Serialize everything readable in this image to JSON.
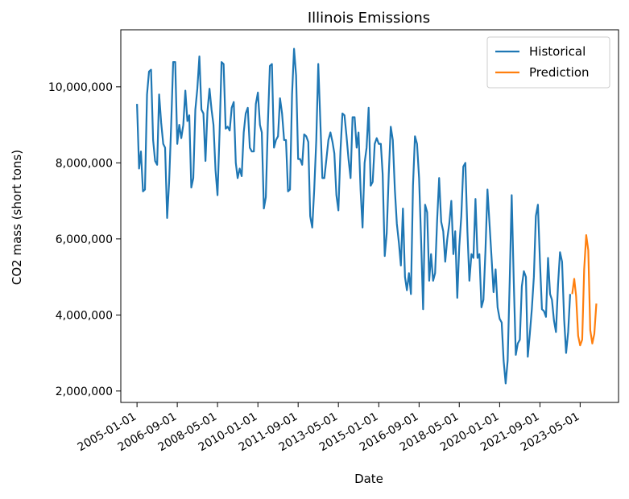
{
  "chart_data": {
    "type": "line",
    "title": "Illinois Emissions",
    "xlabel": "Date",
    "ylabel": "CO2 mass (short tons)",
    "x_axis_type": "date",
    "xlim": [
      "2004-05-01",
      "2024-12-01"
    ],
    "ylim": [
      1700000,
      11500000
    ],
    "x_ticks": [
      "2005-01-01",
      "2006-09-01",
      "2008-05-01",
      "2010-01-01",
      "2011-09-01",
      "2013-05-01",
      "2015-01-01",
      "2016-09-01",
      "2018-05-01",
      "2020-01-01",
      "2021-09-01",
      "2023-05-01"
    ],
    "y_ticks": [
      2000000,
      4000000,
      6000000,
      8000000,
      10000000
    ],
    "y_tick_labels": [
      "2,000,000",
      "4,000,000",
      "6,000,000",
      "8,000,000",
      "10,000,000"
    ],
    "grid": false,
    "legend_position": "top-right",
    "series": [
      {
        "name": "Historical",
        "color": "#1f77b4",
        "points": [
          [
            "2005-01-01",
            9550000
          ],
          [
            "2005-02-01",
            7850000
          ],
          [
            "2005-03-01",
            8300000
          ],
          [
            "2005-04-01",
            7250000
          ],
          [
            "2005-05-01",
            7300000
          ],
          [
            "2005-06-01",
            9800000
          ],
          [
            "2005-07-01",
            10400000
          ],
          [
            "2005-08-01",
            10450000
          ],
          [
            "2005-09-01",
            8600000
          ],
          [
            "2005-10-01",
            8050000
          ],
          [
            "2005-11-01",
            7950000
          ],
          [
            "2005-12-01",
            9800000
          ],
          [
            "2006-01-01",
            9050000
          ],
          [
            "2006-02-01",
            8500000
          ],
          [
            "2006-03-01",
            8400000
          ],
          [
            "2006-04-01",
            6550000
          ],
          [
            "2006-05-01",
            7500000
          ],
          [
            "2006-06-01",
            9000000
          ],
          [
            "2006-07-01",
            10650000
          ],
          [
            "2006-08-01",
            10650000
          ],
          [
            "2006-09-01",
            8500000
          ],
          [
            "2006-10-01",
            9000000
          ],
          [
            "2006-11-01",
            8650000
          ],
          [
            "2006-12-01",
            9000000
          ],
          [
            "2007-01-01",
            9900000
          ],
          [
            "2007-02-01",
            9100000
          ],
          [
            "2007-03-01",
            9250000
          ],
          [
            "2007-04-01",
            7350000
          ],
          [
            "2007-05-01",
            7600000
          ],
          [
            "2007-06-01",
            9400000
          ],
          [
            "2007-07-01",
            9950000
          ],
          [
            "2007-08-01",
            10800000
          ],
          [
            "2007-09-01",
            9400000
          ],
          [
            "2007-10-01",
            9300000
          ],
          [
            "2007-11-01",
            8050000
          ],
          [
            "2007-12-01",
            9350000
          ],
          [
            "2008-01-01",
            9950000
          ],
          [
            "2008-02-01",
            9400000
          ],
          [
            "2008-03-01",
            9000000
          ],
          [
            "2008-04-01",
            7800000
          ],
          [
            "2008-05-01",
            7150000
          ],
          [
            "2008-06-01",
            8800000
          ],
          [
            "2008-07-01",
            10650000
          ],
          [
            "2008-08-01",
            10600000
          ],
          [
            "2008-09-01",
            8900000
          ],
          [
            "2008-10-01",
            8950000
          ],
          [
            "2008-11-01",
            8850000
          ],
          [
            "2008-12-01",
            9450000
          ],
          [
            "2009-01-01",
            9600000
          ],
          [
            "2009-02-01",
            8000000
          ],
          [
            "2009-03-01",
            7600000
          ],
          [
            "2009-04-01",
            7850000
          ],
          [
            "2009-05-01",
            7650000
          ],
          [
            "2009-06-01",
            8800000
          ],
          [
            "2009-07-01",
            9300000
          ],
          [
            "2009-08-01",
            9450000
          ],
          [
            "2009-09-01",
            8400000
          ],
          [
            "2009-10-01",
            8300000
          ],
          [
            "2009-11-01",
            8300000
          ],
          [
            "2009-12-01",
            9550000
          ],
          [
            "2010-01-01",
            9850000
          ],
          [
            "2010-02-01",
            9000000
          ],
          [
            "2010-03-01",
            8800000
          ],
          [
            "2010-04-01",
            6800000
          ],
          [
            "2010-05-01",
            7100000
          ],
          [
            "2010-06-01",
            9050000
          ],
          [
            "2010-07-01",
            10550000
          ],
          [
            "2010-08-01",
            10600000
          ],
          [
            "2010-09-01",
            8400000
          ],
          [
            "2010-10-01",
            8600000
          ],
          [
            "2010-11-01",
            8700000
          ],
          [
            "2010-12-01",
            9700000
          ],
          [
            "2011-01-01",
            9300000
          ],
          [
            "2011-02-01",
            8600000
          ],
          [
            "2011-03-01",
            8600000
          ],
          [
            "2011-04-01",
            7250000
          ],
          [
            "2011-05-01",
            7300000
          ],
          [
            "2011-06-01",
            9800000
          ],
          [
            "2011-07-01",
            11000000
          ],
          [
            "2011-08-01",
            10300000
          ],
          [
            "2011-09-01",
            8100000
          ],
          [
            "2011-10-01",
            8100000
          ],
          [
            "2011-11-01",
            7950000
          ],
          [
            "2011-12-01",
            8750000
          ],
          [
            "2012-01-01",
            8700000
          ],
          [
            "2012-02-01",
            8550000
          ],
          [
            "2012-03-01",
            6600000
          ],
          [
            "2012-04-01",
            6300000
          ],
          [
            "2012-05-01",
            7300000
          ],
          [
            "2012-06-01",
            8600000
          ],
          [
            "2012-07-01",
            10600000
          ],
          [
            "2012-08-01",
            9100000
          ],
          [
            "2012-09-01",
            7600000
          ],
          [
            "2012-10-01",
            7600000
          ],
          [
            "2012-11-01",
            8100000
          ],
          [
            "2012-12-01",
            8600000
          ],
          [
            "2013-01-01",
            8800000
          ],
          [
            "2013-02-01",
            8550000
          ],
          [
            "2013-03-01",
            8250000
          ],
          [
            "2013-04-01",
            7150000
          ],
          [
            "2013-05-01",
            6750000
          ],
          [
            "2013-06-01",
            8300000
          ],
          [
            "2013-07-01",
            9300000
          ],
          [
            "2013-08-01",
            9250000
          ],
          [
            "2013-09-01",
            8700000
          ],
          [
            "2013-10-01",
            8100000
          ],
          [
            "2013-11-01",
            7600000
          ],
          [
            "2013-12-01",
            9200000
          ],
          [
            "2014-01-01",
            9200000
          ],
          [
            "2014-02-01",
            8400000
          ],
          [
            "2014-03-01",
            8800000
          ],
          [
            "2014-04-01",
            7300000
          ],
          [
            "2014-05-01",
            6300000
          ],
          [
            "2014-06-01",
            8000000
          ],
          [
            "2014-07-01",
            8400000
          ],
          [
            "2014-08-01",
            9450000
          ],
          [
            "2014-09-01",
            7400000
          ],
          [
            "2014-10-01",
            7500000
          ],
          [
            "2014-11-01",
            8500000
          ],
          [
            "2014-12-01",
            8650000
          ],
          [
            "2015-01-01",
            8500000
          ],
          [
            "2015-02-01",
            8500000
          ],
          [
            "2015-03-01",
            7700000
          ],
          [
            "2015-04-01",
            5550000
          ],
          [
            "2015-05-01",
            6150000
          ],
          [
            "2015-06-01",
            7700000
          ],
          [
            "2015-07-01",
            8950000
          ],
          [
            "2015-08-01",
            8600000
          ],
          [
            "2015-09-01",
            7300000
          ],
          [
            "2015-10-01",
            6400000
          ],
          [
            "2015-11-01",
            5900000
          ],
          [
            "2015-12-01",
            5300000
          ],
          [
            "2016-01-01",
            6800000
          ],
          [
            "2016-02-01",
            5000000
          ],
          [
            "2016-03-01",
            4650000
          ],
          [
            "2016-04-01",
            5100000
          ],
          [
            "2016-05-01",
            4550000
          ],
          [
            "2016-06-01",
            7400000
          ],
          [
            "2016-07-01",
            8700000
          ],
          [
            "2016-08-01",
            8500000
          ],
          [
            "2016-09-01",
            7600000
          ],
          [
            "2016-10-01",
            6000000
          ],
          [
            "2016-11-01",
            4150000
          ],
          [
            "2016-12-01",
            6900000
          ],
          [
            "2017-01-01",
            6700000
          ],
          [
            "2017-02-01",
            4900000
          ],
          [
            "2017-03-01",
            5600000
          ],
          [
            "2017-04-01",
            4900000
          ],
          [
            "2017-05-01",
            5100000
          ],
          [
            "2017-06-01",
            6500000
          ],
          [
            "2017-07-01",
            7600000
          ],
          [
            "2017-08-01",
            6450000
          ],
          [
            "2017-09-01",
            6200000
          ],
          [
            "2017-10-01",
            5400000
          ],
          [
            "2017-11-01",
            6000000
          ],
          [
            "2017-12-01",
            6400000
          ],
          [
            "2018-01-01",
            7000000
          ],
          [
            "2018-02-01",
            5600000
          ],
          [
            "2018-03-01",
            6200000
          ],
          [
            "2018-04-01",
            4450000
          ],
          [
            "2018-05-01",
            5800000
          ],
          [
            "2018-06-01",
            6600000
          ],
          [
            "2018-07-01",
            7900000
          ],
          [
            "2018-08-01",
            8000000
          ],
          [
            "2018-09-01",
            6200000
          ],
          [
            "2018-10-01",
            4900000
          ],
          [
            "2018-11-01",
            5600000
          ],
          [
            "2018-12-01",
            5500000
          ],
          [
            "2019-01-01",
            7050000
          ],
          [
            "2019-02-01",
            5500000
          ],
          [
            "2019-03-01",
            5600000
          ],
          [
            "2019-04-01",
            4200000
          ],
          [
            "2019-05-01",
            4400000
          ],
          [
            "2019-06-01",
            5700000
          ],
          [
            "2019-07-01",
            7300000
          ],
          [
            "2019-08-01",
            6400000
          ],
          [
            "2019-09-01",
            5500000
          ],
          [
            "2019-10-01",
            4600000
          ],
          [
            "2019-11-01",
            5200000
          ],
          [
            "2019-12-01",
            4200000
          ],
          [
            "2020-01-01",
            3900000
          ],
          [
            "2020-02-01",
            3800000
          ],
          [
            "2020-03-01",
            2800000
          ],
          [
            "2020-04-01",
            2200000
          ],
          [
            "2020-05-01",
            2800000
          ],
          [
            "2020-06-01",
            4900000
          ],
          [
            "2020-07-01",
            7150000
          ],
          [
            "2020-08-01",
            4900000
          ],
          [
            "2020-09-01",
            2950000
          ],
          [
            "2020-10-01",
            3250000
          ],
          [
            "2020-11-01",
            3350000
          ],
          [
            "2020-12-01",
            4750000
          ],
          [
            "2021-01-01",
            5150000
          ],
          [
            "2021-02-01",
            5000000
          ],
          [
            "2021-03-01",
            2900000
          ],
          [
            "2021-04-01",
            3500000
          ],
          [
            "2021-05-01",
            4150000
          ],
          [
            "2021-06-01",
            5000000
          ],
          [
            "2021-07-01",
            6600000
          ],
          [
            "2021-08-01",
            6900000
          ],
          [
            "2021-09-01",
            5400000
          ],
          [
            "2021-10-01",
            4150000
          ],
          [
            "2021-11-01",
            4100000
          ],
          [
            "2021-12-01",
            3950000
          ],
          [
            "2022-01-01",
            5500000
          ],
          [
            "2022-02-01",
            4550000
          ],
          [
            "2022-03-01",
            4400000
          ],
          [
            "2022-04-01",
            3850000
          ],
          [
            "2022-05-01",
            3550000
          ],
          [
            "2022-06-01",
            4800000
          ],
          [
            "2022-07-01",
            5650000
          ],
          [
            "2022-08-01",
            5400000
          ],
          [
            "2022-09-01",
            3900000
          ],
          [
            "2022-10-01",
            3000000
          ],
          [
            "2022-11-01",
            3550000
          ],
          [
            "2022-12-01",
            4550000
          ]
        ]
      },
      {
        "name": "Prediction",
        "color": "#ff7f0e",
        "points": [
          [
            "2023-01-01",
            4550000
          ],
          [
            "2023-02-01",
            4950000
          ],
          [
            "2023-03-01",
            4500000
          ],
          [
            "2023-04-01",
            3450000
          ],
          [
            "2023-05-01",
            3200000
          ],
          [
            "2023-06-01",
            3350000
          ],
          [
            "2023-07-01",
            5200000
          ],
          [
            "2023-08-01",
            6100000
          ],
          [
            "2023-09-01",
            5700000
          ],
          [
            "2023-10-01",
            3600000
          ],
          [
            "2023-11-01",
            3250000
          ],
          [
            "2023-12-01",
            3500000
          ],
          [
            "2024-01-01",
            4300000
          ]
        ]
      }
    ]
  }
}
